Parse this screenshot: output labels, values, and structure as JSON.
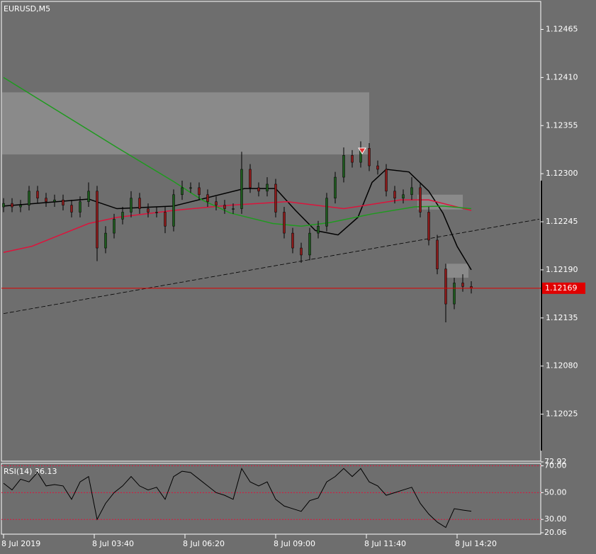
{
  "chart_data": [
    {
      "type": "candlestick",
      "title": "EURUSD,M5",
      "x": [
        0,
        3,
        6,
        9,
        12,
        15,
        18,
        21,
        24,
        27,
        30,
        33,
        36,
        39,
        42,
        45,
        48,
        51,
        54,
        57,
        60,
        63,
        66,
        69,
        72,
        75,
        78,
        81,
        84,
        87,
        90,
        93,
        96,
        99,
        102,
        105,
        108,
        111,
        114,
        117,
        120,
        123,
        126,
        129,
        132,
        135,
        138,
        141,
        144,
        147,
        150,
        153,
        156,
        159,
        162,
        165
      ],
      "open": [
        1.12262,
        1.12266,
        1.12262,
        1.12264,
        1.1228,
        1.12272,
        1.12268,
        1.1227,
        1.12264,
        1.12256,
        1.12268,
        1.1228,
        1.12215,
        1.12232,
        1.12248,
        1.12256,
        1.12272,
        1.1226,
        1.12256,
        1.12256,
        1.1224,
        1.12276,
        1.12284,
        1.12284,
        1.12276,
        1.12268,
        1.12264,
        1.1226,
        1.1226,
        1.12305,
        1.12284,
        1.1228,
        1.12288,
        1.12256,
        1.12232,
        1.12215,
        1.12207,
        1.12232,
        1.1224,
        1.12272,
        1.12296,
        1.12321,
        1.12313,
        1.12329,
        1.12309,
        1.12305,
        1.1228,
        1.12272,
        1.12276,
        1.12284,
        1.12256,
        1.12224,
        1.12191,
        1.12151,
        1.12175,
        1.12171
      ],
      "high": [
        1.12272,
        1.12272,
        1.1227,
        1.12286,
        1.12286,
        1.12278,
        1.12276,
        1.12276,
        1.1227,
        1.12274,
        1.1229,
        1.12286,
        1.1224,
        1.12254,
        1.12262,
        1.1228,
        1.12278,
        1.12266,
        1.12262,
        1.12262,
        1.12282,
        1.12292,
        1.1229,
        1.1229,
        1.12282,
        1.12274,
        1.1227,
        1.12266,
        1.12325,
        1.12311,
        1.1229,
        1.12296,
        1.12294,
        1.12262,
        1.12238,
        1.12221,
        1.12238,
        1.12246,
        1.12278,
        1.12302,
        1.1233,
        1.12327,
        1.12337,
        1.12335,
        1.12315,
        1.12311,
        1.12286,
        1.12282,
        1.12296,
        1.1229,
        1.12262,
        1.1223,
        1.12197,
        1.12181,
        1.12185,
        1.12177
      ],
      "low": [
        1.12256,
        1.12256,
        1.12256,
        1.12258,
        1.12266,
        1.12262,
        1.12262,
        1.12258,
        1.1225,
        1.1225,
        1.12262,
        1.122,
        1.12209,
        1.12226,
        1.12242,
        1.1225,
        1.12254,
        1.1225,
        1.1225,
        1.12232,
        1.12234,
        1.1227,
        1.12278,
        1.1227,
        1.12262,
        1.12258,
        1.12254,
        1.12254,
        1.12254,
        1.12278,
        1.12274,
        1.12274,
        1.1225,
        1.12226,
        1.12209,
        1.12198,
        1.12201,
        1.12226,
        1.12234,
        1.12266,
        1.1229,
        1.12307,
        1.12307,
        1.12303,
        1.12299,
        1.12274,
        1.12266,
        1.12266,
        1.1227,
        1.1225,
        1.12218,
        1.12185,
        1.1213,
        1.12145,
        1.12165,
        1.12163
      ],
      "close": [
        1.12266,
        1.12262,
        1.12264,
        1.1228,
        1.12272,
        1.12268,
        1.1227,
        1.12264,
        1.12256,
        1.12268,
        1.1228,
        1.12215,
        1.12232,
        1.12248,
        1.12256,
        1.12272,
        1.1226,
        1.12256,
        1.12256,
        1.1224,
        1.12276,
        1.12284,
        1.12284,
        1.12276,
        1.12268,
        1.12264,
        1.1226,
        1.1226,
        1.12305,
        1.12284,
        1.1228,
        1.12288,
        1.12256,
        1.12232,
        1.12215,
        1.12207,
        1.12232,
        1.1224,
        1.12272,
        1.12296,
        1.12321,
        1.12313,
        1.12329,
        1.12309,
        1.12305,
        1.1228,
        1.12272,
        1.12276,
        1.12284,
        1.12256,
        1.12224,
        1.12191,
        1.12151,
        1.12175,
        1.12171,
        1.12169
      ],
      "up_color": "#1e5a1e",
      "down_color": "#8b1a1a",
      "series": [
        {
          "color": "#000000",
          "x": [
            0,
            30,
            40,
            60,
            85,
            96,
            103,
            110,
            118,
            125,
            130,
            135,
            143,
            150,
            155,
            160,
            165
          ],
          "values": [
            1.12263,
            1.12271,
            1.1226,
            1.12263,
            1.12283,
            1.12283,
            1.12258,
            1.12235,
            1.1223,
            1.1225,
            1.1229,
            1.12305,
            1.12302,
            1.1228,
            1.12255,
            1.12217,
            1.1219
          ]
        },
        {
          "color": "#dc143c",
          "x": [
            0,
            10,
            20,
            30,
            40,
            60,
            80,
            100,
            120,
            140,
            150,
            160,
            165
          ],
          "values": [
            1.1221,
            1.12217,
            1.1223,
            1.12243,
            1.1225,
            1.12258,
            1.12264,
            1.12268,
            1.1226,
            1.1227,
            1.1227,
            1.12262,
            1.12258
          ]
        },
        {
          "color": "#1f9a1f",
          "x": [
            0,
            20,
            40,
            60,
            70,
            80,
            95,
            105,
            115,
            130,
            145,
            155,
            165
          ],
          "values": [
            1.1241,
            1.1237,
            1.1233,
            1.12291,
            1.1227,
            1.12255,
            1.12243,
            1.1224,
            1.12244,
            1.12254,
            1.12262,
            1.12263,
            1.1226
          ]
        }
      ],
      "trendline": {
        "x": [
          0,
          189
        ],
        "values": [
          1.1214,
          1.12248
        ]
      },
      "zones": [
        {
          "x": [
            -0.5,
            129
          ],
          "values": [
            1.12393,
            1.12322
          ]
        },
        {
          "x": [
            146,
            162
          ],
          "values": [
            1.12276,
            1.12259
          ]
        },
        {
          "x": [
            156,
            164
          ],
          "values": [
            1.12197,
            1.12181
          ]
        }
      ],
      "current_price": 1.12169,
      "ylim": [
        1.11972,
        1.12497
      ],
      "yticks": [
        1.12465,
        {
          "value": 1.1241,
          "label": "1.12410"
        },
        1.12355,
        {
          "value": 1.123,
          "label": "1.12300"
        },
        1.12245,
        {
          "value": 1.1219,
          "label": "1.12190"
        },
        1.12135,
        {
          "value": 1.1208,
          "label": "1.12080"
        },
        1.12025
      ]
    },
    {
      "type": "line",
      "title": "RSI(14) 36.13",
      "color": "#000000",
      "x": [
        0,
        3,
        6,
        9,
        12,
        15,
        18,
        21,
        24,
        27,
        30,
        33,
        36,
        39,
        42,
        45,
        48,
        51,
        54,
        57,
        60,
        63,
        66,
        69,
        72,
        75,
        78,
        81,
        84,
        87,
        90,
        93,
        96,
        99,
        102,
        105,
        108,
        111,
        114,
        117,
        120,
        123,
        126,
        129,
        132,
        135,
        138,
        141,
        144,
        147,
        150,
        153,
        156,
        159,
        162,
        165
      ],
      "values": [
        57,
        52,
        60,
        58,
        65,
        55,
        56,
        55,
        45,
        58,
        62,
        30,
        42,
        50,
        55,
        62,
        55,
        52,
        54,
        45,
        62,
        66,
        65,
        60,
        55,
        50,
        48,
        45,
        68,
        58,
        55,
        58,
        45,
        40,
        38,
        36,
        44,
        46,
        58,
        62,
        68,
        62,
        68,
        58,
        55,
        48,
        50,
        52,
        54,
        42,
        34,
        28,
        24,
        38,
        37,
        36.13
      ],
      "levels": [
        70,
        50,
        30
      ],
      "level_color": "#dc143c",
      "ylim": [
        20.06,
        72.92
      ],
      "yticks": [
        {
          "value": 70,
          "label": "70.00"
        },
        72.92,
        {
          "value": 50,
          "label": "50.00"
        },
        {
          "value": 30,
          "label": "30.00"
        },
        20.06
      ],
      "xticks": [
        {
          "value": 0,
          "label": "8 Jul 2019"
        },
        {
          "value": 32,
          "label": "8 Jul 03:40"
        },
        {
          "value": 64,
          "label": "8 Jul 06:20"
        },
        {
          "value": 96,
          "label": "8 Jul 09:00"
        },
        {
          "value": 128,
          "label": "8 Jul 11:40"
        },
        {
          "value": 160,
          "label": "8 Jul 14:20"
        }
      ]
    }
  ]
}
